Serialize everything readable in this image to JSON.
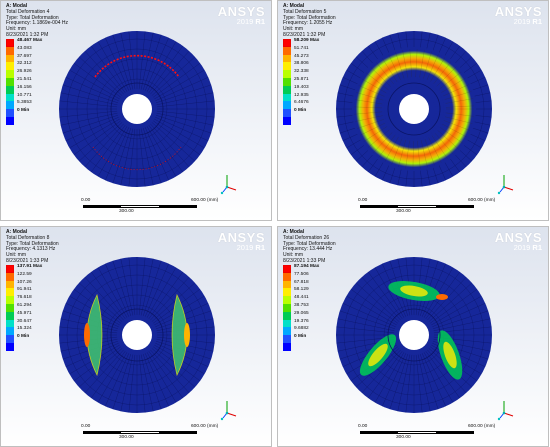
{
  "brand": {
    "name": "ANSYS",
    "version": "2019",
    "release": "R1"
  },
  "colors": {
    "disc_blue": "#16279a",
    "legend": [
      "#ff0000",
      "#ff6a00",
      "#ffb400",
      "#ffee00",
      "#b9ff00",
      "#52e000",
      "#00cc55",
      "#00e0c8",
      "#00a8ff",
      "#2050ff",
      "#0000ff"
    ]
  },
  "panels": [
    {
      "title": "A: Modal",
      "line1": "Total Deformation 4",
      "line2": "Type: Total Deformation",
      "line3": "Frequency: 1.1869e-004 Hz",
      "line4": "Unit: mm",
      "line5": "8/23/2021 1:32 PM",
      "legend_labels": [
        "48.467 Max",
        "43.083",
        "37.697",
        "32.312",
        "26.926",
        "21.541",
        "16.156",
        "10.771",
        "5.3853",
        "0 Min"
      ],
      "scale": {
        "left": "0.00",
        "right": "600.00 (mm)",
        "mid": "300.00"
      },
      "mode": "rim"
    },
    {
      "title": "A: Modal",
      "line1": "Total Deformation 5",
      "line2": "Type: Total Deformation",
      "line3": "Frequency: 1.2055 Hz",
      "line4": "Unit: mm",
      "line5": "8/23/2021 1:32 PM",
      "legend_labels": [
        "58.209 Max",
        "51.741",
        "45.273",
        "38.806",
        "32.338",
        "25.871",
        "19.403",
        "12.935",
        "6.4676",
        "0 Min"
      ],
      "scale": {
        "left": "0.00",
        "right": "600.00 (mm)",
        "mid": "300.00"
      },
      "mode": "ring"
    },
    {
      "title": "A: Modal",
      "line1": "Total Deformation 8",
      "line2": "Type: Total Deformation",
      "line3": "Frequency: 4.1313 Hz",
      "line4": "Unit: mm",
      "line5": "8/23/2021 1:33 PM",
      "legend_labels": [
        "137.91 Max",
        "122.59",
        "107.26",
        "91.941",
        "76.618",
        "61.294",
        "45.971",
        "30.647",
        "15.324",
        "0 Min"
      ],
      "scale": {
        "left": "0.00",
        "right": "600.00 (mm)",
        "mid": "300.00"
      },
      "mode": "sides"
    },
    {
      "title": "A: Modal",
      "line1": "Total Deformation 26",
      "line2": "Type: Total Deformation",
      "line3": "Frequency: 13.444 Hz",
      "line4": "Unit: mm",
      "line5": "8/23/2021 1:33 PM",
      "legend_labels": [
        "87.194 Max",
        "77.506",
        "67.818",
        "58.129",
        "48.441",
        "38.753",
        "29.065",
        "19.376",
        "9.6882",
        "0 Min"
      ],
      "scale": {
        "left": "0.00",
        "right": "600.00 (mm)",
        "mid": "300.00"
      },
      "mode": "lobes"
    }
  ]
}
